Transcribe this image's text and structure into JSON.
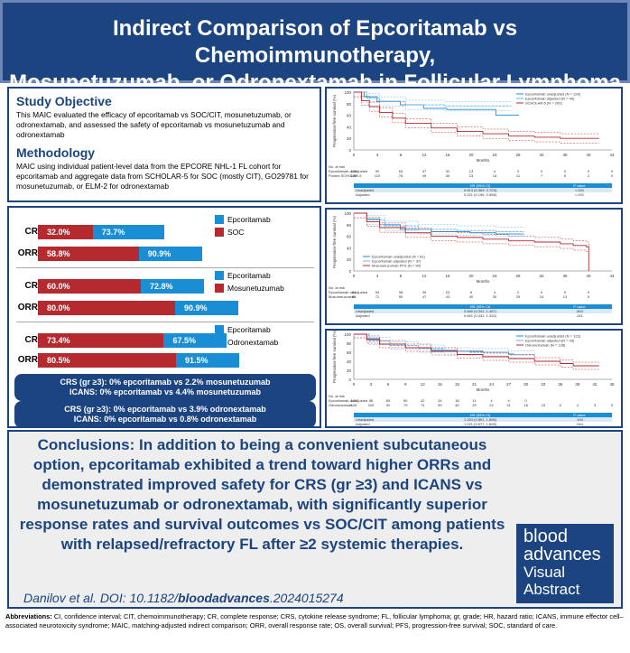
{
  "header": {
    "line1": "Indirect Comparison of Epcoritamab vs Chemoimmunotherapy,",
    "line2": "Mosunetuzumab, or Odronextamab in Follicular Lymphoma"
  },
  "objective": {
    "heading": "Study Objective",
    "text": "This MAIC evaluated the efficacy of epcoritamab vs SOC/CIT, mosunetuzumab, or odronextamab, and assessed the safety of epcoritamab vs mosunetuzumab and odronextamab",
    "method_heading": "Methodology",
    "method_text": "MAIC using individual patient-level data from the EPCORE NHL-1 FL cohort for epcoritamab and aggregate data from SCHOLAR-5 for SOC (mostly CIT), GO29781 for mosunetuzumab, or ELM-2 for odronextamab"
  },
  "groups": [
    {
      "legend_blue": "Epcoritamab",
      "legend_red": "SOC",
      "rows": [
        {
          "label": "CR",
          "red": "32.0%",
          "blue": "73.7%",
          "red_v": 32.0,
          "blue_v": 73.7
        },
        {
          "label": "ORR",
          "red": "58.8%",
          "blue": "90.9%",
          "red_v": 58.8,
          "blue_v": 90.9
        }
      ]
    },
    {
      "legend_blue": "Epcoritamab",
      "legend_red": "Mosunetuzumab",
      "rows": [
        {
          "label": "CR",
          "red": "60.0%",
          "blue": "72.8%",
          "red_v": 60.0,
          "blue_v": 72.8
        },
        {
          "label": "ORR",
          "red": "80.0%",
          "blue": "90.9%",
          "red_v": 80.0,
          "blue_v": 90.9
        }
      ]
    },
    {
      "legend_blue": "Epcoritamab",
      "legend_red": "Odronextamab",
      "rows": [
        {
          "label": "CR",
          "red": "73.4%",
          "blue": "67.5%",
          "red_v": 73.4,
          "blue_v": 67.5
        },
        {
          "label": "ORR",
          "red": "80.5%",
          "blue": "91.5%",
          "red_v": 80.5,
          "blue_v": 91.5
        }
      ]
    }
  ],
  "safety": {
    "box1_line1": "CRS (gr ≥3): 0% epcoritamab vs 2.2% mosunetuzumab",
    "box1_line2": "ICANS: 0% epcoritamab vs 4.4% mosunetuzumab",
    "box2_line1": "CRS (gr ≥3): 0% epcoritamab vs 3.9% odronextamab",
    "box2_line2": "ICANS: 0% epcoritamab vs 0.8% odronextamab"
  },
  "km": {
    "ylabel": "Progression-free survival (%)",
    "xlabel": "Months",
    "nrisk": "No. at risk",
    "p1": {
      "legend": [
        "Epcoritamab unadjusted (N = 128)",
        "Epcoritamab adjusted (N = 44)",
        "SCHOLAR-5 (N = 200)"
      ],
      "ticks": [
        "0",
        "4",
        "8",
        "12",
        "16",
        "20",
        "24",
        "28",
        "32",
        "36",
        "40",
        "44"
      ],
      "risk_rows": [
        {
          "name": "Epcoritamab unadjusted",
          "vals": [
            "128",
            "90",
            "63",
            "37",
            "32",
            "13",
            "4",
            "3",
            "0",
            "0",
            "0",
            "0"
          ]
        },
        {
          "name": "Pooled SCHOLAR-5",
          "vals": [
            "200",
            "110",
            "76",
            "49",
            "35",
            "23",
            "15",
            "11",
            "7",
            "5",
            "2",
            "0"
          ]
        }
      ],
      "table_head": [
        "",
        "HR (95% CI)",
        "P value"
      ],
      "table": [
        {
          "name": "Unadjusted",
          "hr": "0.613 (0.369, 0.723)",
          "p": "<.001"
        },
        {
          "name": "Adjusted",
          "hr": "0.221 (0.196, 0.558)",
          "p": "<.001"
        }
      ]
    },
    "p2": {
      "legend": [
        "Epcoritamab unadjusted (N = 81)",
        "Epcoritamab adjusted (N = 37)",
        "Mosunetuzumab PFS (N = 90)"
      ],
      "ticks": [
        "0",
        "4",
        "8",
        "12",
        "16",
        "20",
        "24",
        "28",
        "32",
        "36",
        "40",
        "44"
      ],
      "risk_rows": [
        {
          "name": "Epcoritamab unadjusted",
          "vals": [
            "81",
            "54",
            "38",
            "35",
            "23",
            "6",
            "4",
            "2",
            "0",
            "0",
            "0"
          ]
        },
        {
          "name": "Mosunetuzumab",
          "vals": [
            "90",
            "72",
            "59",
            "47",
            "43",
            "40",
            "30",
            "25",
            "24",
            "13",
            "0"
          ]
        }
      ],
      "table_head": [
        "",
        "HR (95% CI)",
        "P value"
      ],
      "table": [
        {
          "name": "Unadjusted",
          "hr": "0.660 (0.341, 1.487)",
          "p": ".893"
        },
        {
          "name": "Adjusted",
          "hr": "0.661 (0.331, 1.320)",
          "p": ".241"
        }
      ]
    },
    "p3": {
      "legend": [
        "Epcoritamab unadjusted (N = 123)",
        "Epcoritamab adjusted (N = 43)",
        "Odronextamab (N = 128)"
      ],
      "ticks": [
        "0",
        "3",
        "6",
        "9",
        "12",
        "15",
        "18",
        "21",
        "24",
        "27",
        "30",
        "33",
        "36",
        "39",
        "42",
        "45"
      ],
      "risk_rows": [
        {
          "name": "Epcoritamab unadjusted",
          "vals": [
            "123",
            "86",
            "65",
            "50",
            "42",
            "34",
            "18",
            "11",
            "4",
            "4",
            "0"
          ]
        },
        {
          "name": "Odronextamab",
          "vals": [
            "128",
            "109",
            "90",
            "79",
            "74",
            "59",
            "45",
            "29",
            "24",
            "21",
            "18",
            "15",
            "6",
            "4",
            "3",
            "0"
          ]
        }
      ],
      "table_head": [
        "",
        "HR (95% CI)",
        "P value"
      ],
      "table": [
        {
          "name": "Unadjusted",
          "hr": "1.263 (0.861, 1.856)",
          "p": ".194"
        },
        {
          "name": "Adjusted",
          "hr": "1.021 (0.577, 1.805)",
          "p": ".944"
        }
      ]
    }
  },
  "conclusion": {
    "label": "Conclusions:",
    "text": "In addition to being a convenient subcutaneous option, epcoritamab exhibited a trend toward higher ORRs and demonstrated improved safety for CRS (gr ≥3) and ICANS vs mosunetuzumab or odronextamab, with significantly superior response rates and survival outcomes vs SOC/CIT among patients with relapsed/refractory FL after ≥2 systemic therapies.",
    "doi_prefix": "Danilov et al. DOI: 10.1182/",
    "doi_bold": "bloodadvances",
    "doi_suffix": ".2024015274"
  },
  "badge": {
    "line1": "blood",
    "line2": "advances",
    "line3": "Visual",
    "line4": "Abstract"
  },
  "abbreviations": {
    "label": "Abbreviations:",
    "text": "CI, confidence interval; CIT, chemoimmunotherapy; CR, complete response; CRS, cytokine release syndrome; FL, follicular lymphoma; gr, grade; HR, hazard ratio; ICANS, immune effector cell–associated neurotoxicity syndrome; MAIC, matching-adjusted indirect comparison; ORR, overall response rate; OS, overall survival; PFS, progression-free survival; SOC, standard of care."
  },
  "colors": {
    "navy": "#1b4480",
    "red": "#b52a2f",
    "blue": "#1a8ed5"
  }
}
